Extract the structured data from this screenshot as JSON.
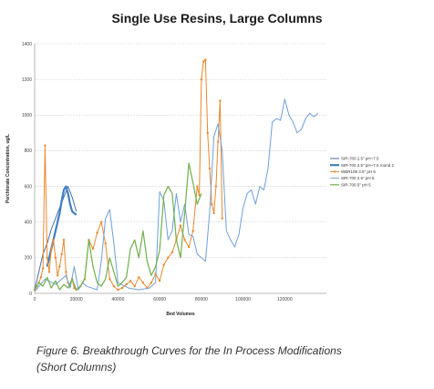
{
  "caption": {
    "line1": "Figure 6. Breakthrough Curves for the In Process Modifications",
    "line2": "(Short Columns)"
  },
  "chart_data": {
    "type": "line",
    "title": "Single Use Resins, Large Columns",
    "xlabel": "Bed Volumes",
    "ylabel": "Perchlorate Concentration, ug/L",
    "xlim": [
      0,
      140000
    ],
    "ylim": [
      0,
      1400
    ],
    "xticks": [
      0,
      20000,
      40000,
      60000,
      80000,
      100000,
      120000
    ],
    "yticks": [
      0,
      200,
      400,
      600,
      800,
      1000,
      1200,
      1400
    ],
    "grid": true,
    "legend_position": "right",
    "series": [
      {
        "name": "SIR-700 2.5\" pH~7.5",
        "color": "#4a6fa5",
        "width": 1.0,
        "marker": false,
        "x": [
          0,
          2000,
          4000,
          6000,
          8000,
          10000,
          12000,
          14000,
          16000,
          18000,
          20000
        ],
        "y": [
          20,
          120,
          220,
          280,
          360,
          420,
          480,
          540,
          600,
          540,
          460
        ]
      },
      {
        "name": "SIR-700 2.5\" pH~7.5 round 2",
        "color": "#3d7fc4",
        "width": 2.2,
        "marker": false,
        "x": [
          6000,
          8000,
          10000,
          12000,
          13000,
          14000,
          15000,
          16000,
          17000,
          18000,
          19000,
          20000
        ],
        "y": [
          150,
          250,
          350,
          450,
          520,
          580,
          600,
          560,
          500,
          460,
          450,
          440
        ]
      },
      {
        "name": "WBR109 3.5\" pH 5",
        "color": "#e8882d",
        "width": 1.0,
        "marker": true,
        "x": [
          0,
          1000,
          2000,
          3000,
          4000,
          5000,
          6000,
          7000,
          8000,
          9000,
          10000,
          11000,
          12000,
          13000,
          14000,
          15000,
          16000,
          17000,
          18000,
          19000,
          20000,
          22000,
          24000,
          26000,
          28000,
          30000,
          32000,
          34000,
          36000,
          38000,
          40000,
          42000,
          44000,
          46000,
          48000,
          50000,
          52000,
          54000,
          56000,
          58000,
          60000,
          62000,
          64000,
          66000,
          68000,
          70000,
          72000,
          74000,
          76000,
          78000,
          79000,
          80000,
          81000,
          82000,
          83000,
          84000,
          85000,
          86000,
          87000,
          88000,
          89000,
          90000
        ],
        "y": [
          20,
          40,
          60,
          90,
          140,
          830,
          200,
          120,
          250,
          300,
          200,
          100,
          150,
          220,
          300,
          120,
          60,
          40,
          80,
          30,
          20,
          40,
          80,
          300,
          250,
          340,
          400,
          280,
          80,
          40,
          20,
          30,
          50,
          70,
          40,
          90,
          60,
          30,
          60,
          110,
          70,
          160,
          200,
          230,
          300,
          380,
          300,
          260,
          350,
          600,
          550,
          1200,
          1300,
          1310,
          900,
          700,
          500,
          450,
          600,
          850,
          1080,
          420
        ]
      },
      {
        "name": "SIR-700 2.5\" pH 5",
        "color": "#6fa0d8",
        "width": 1.0,
        "marker": false,
        "x": [
          0,
          5000,
          10000,
          15000,
          17000,
          19000,
          21000,
          23000,
          25000,
          30000,
          32000,
          34000,
          36000,
          38000,
          40000,
          45000,
          50000,
          55000,
          58000,
          60000,
          62000,
          64000,
          66000,
          68000,
          70000,
          72000,
          74000,
          76000,
          78000,
          80000,
          82000,
          84000,
          86000,
          88000,
          90000,
          92000,
          94000,
          96000,
          98000,
          100000,
          102000,
          104000,
          106000,
          108000,
          110000,
          112000,
          114000,
          116000,
          118000,
          120000,
          122000,
          124000,
          126000,
          128000,
          130000,
          132000,
          134000,
          136000
        ],
        "y": [
          10,
          80,
          50,
          100,
          30,
          150,
          20,
          60,
          40,
          20,
          180,
          420,
          470,
          280,
          60,
          30,
          20,
          30,
          60,
          570,
          520,
          300,
          350,
          560,
          400,
          500,
          330,
          320,
          220,
          200,
          180,
          460,
          880,
          950,
          800,
          350,
          300,
          260,
          330,
          480,
          560,
          580,
          500,
          600,
          580,
          700,
          960,
          980,
          970,
          1090,
          1000,
          960,
          900,
          920,
          980,
          1010,
          990,
          1010
        ]
      },
      {
        "name": "SIR-700 5\" pH 5",
        "color": "#6fb04a",
        "width": 1.2,
        "marker": false,
        "x": [
          0,
          2000,
          4000,
          6000,
          8000,
          10000,
          12000,
          14000,
          16000,
          18000,
          20000,
          22000,
          24000,
          26000,
          28000,
          30000,
          32000,
          34000,
          36000,
          38000,
          40000,
          42000,
          44000,
          46000,
          48000,
          50000,
          52000,
          54000,
          56000,
          58000,
          60000,
          62000,
          64000,
          66000,
          68000,
          70000,
          72000,
          74000,
          76000,
          78000,
          80000
        ],
        "y": [
          20,
          60,
          40,
          90,
          30,
          70,
          20,
          50,
          30,
          80,
          20,
          40,
          80,
          300,
          150,
          60,
          40,
          80,
          200,
          120,
          40,
          60,
          90,
          250,
          300,
          200,
          350,
          180,
          100,
          150,
          240,
          550,
          600,
          560,
          300,
          200,
          450,
          730,
          620,
          500,
          560
        ]
      }
    ]
  }
}
